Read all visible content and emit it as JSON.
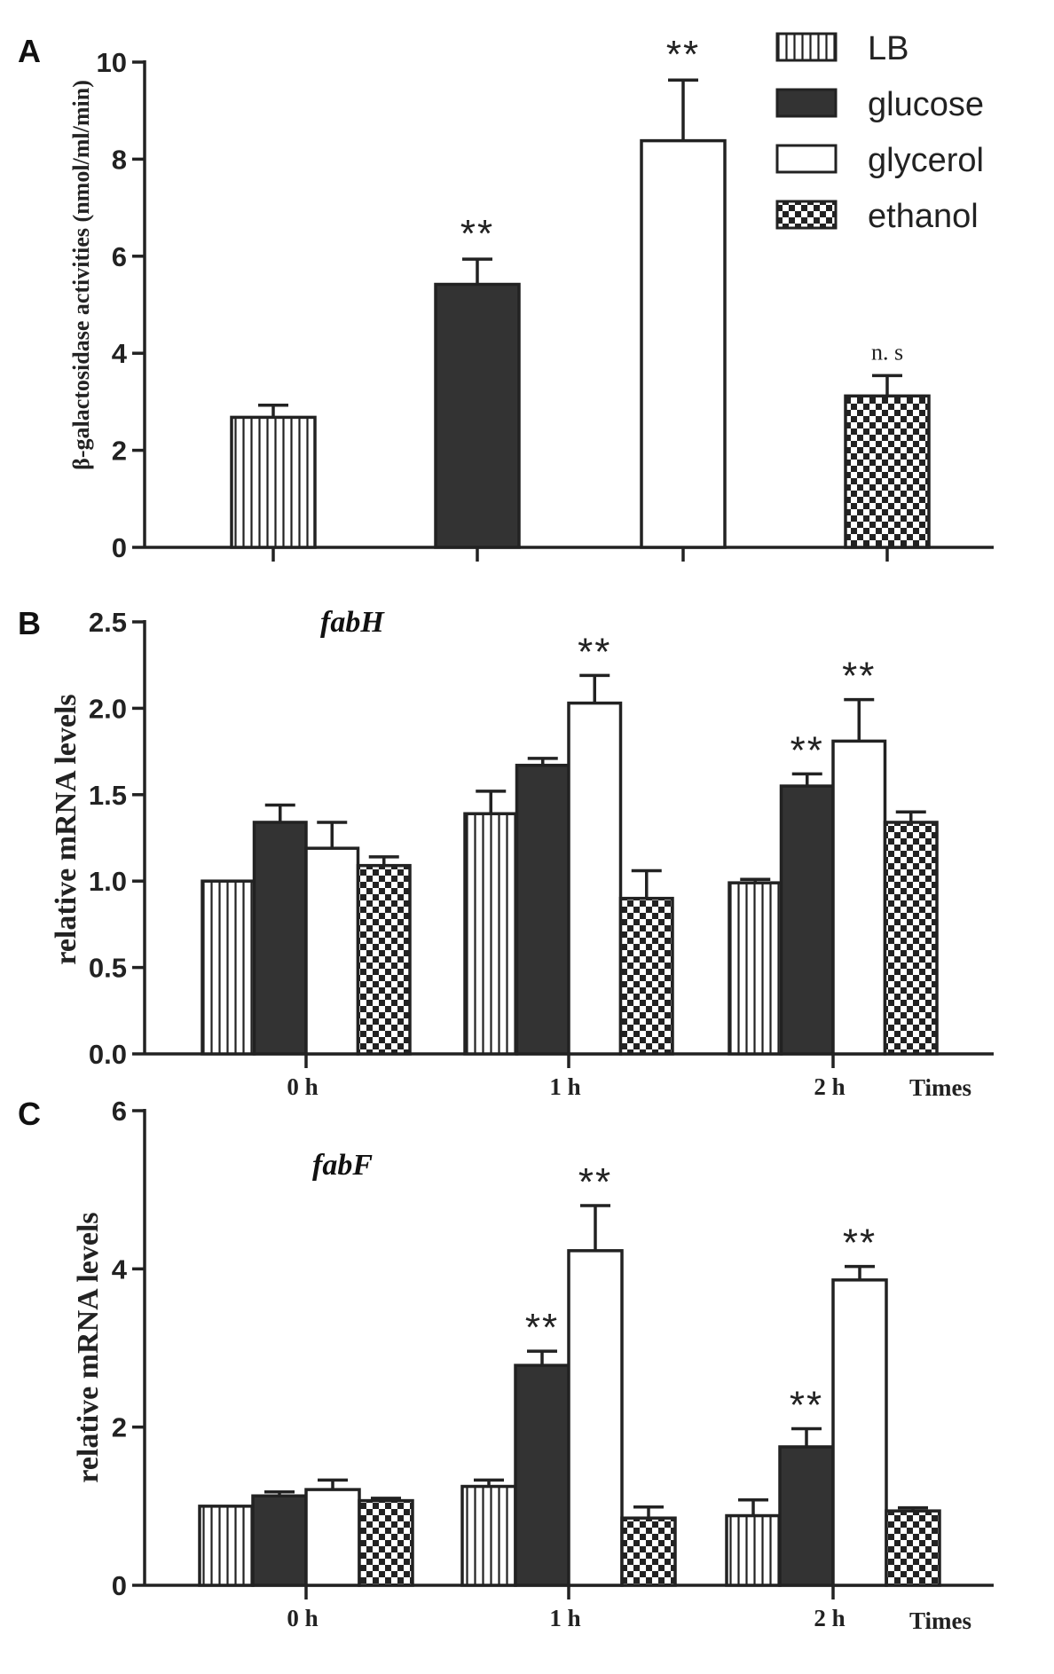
{
  "colors": {
    "stroke": "#222222",
    "solid": "#333333",
    "background": "#ffffff"
  },
  "legend": [
    {
      "label": "LB",
      "fill": "vert"
    },
    {
      "label": "glucose",
      "fill": "solid"
    },
    {
      "label": "glycerol",
      "fill": "white"
    },
    {
      "label": "ethanol",
      "fill": "checker"
    }
  ],
  "chart_data": [
    {
      "panel": "A",
      "type": "bar",
      "title": "",
      "ylabel": "β-galactosidase activities (nmol/ml/min)",
      "xlabel": "",
      "ylim": [
        0,
        10
      ],
      "yticks": [
        0,
        2,
        4,
        6,
        8,
        10
      ],
      "categories": [
        "LB",
        "glucose",
        "glycerol",
        "ethanol"
      ],
      "values": [
        2.68,
        5.42,
        8.38,
        3.12
      ],
      "errors": [
        0.25,
        0.52,
        1.25,
        0.42
      ],
      "annotations": [
        "",
        "**",
        "**",
        "n. s"
      ]
    },
    {
      "panel": "B",
      "type": "bar",
      "gene": "fabH",
      "ylabel": "relative mRNA levels",
      "xlabel": "Times",
      "ylim": [
        0,
        2.5
      ],
      "yticks": [
        "0.0",
        "0.5",
        "1.0",
        "1.5",
        "2.0",
        "2.5"
      ],
      "categories": [
        "0 h",
        "1 h",
        "2 h"
      ],
      "series": [
        {
          "name": "LB",
          "values": [
            1.0,
            1.39,
            0.99
          ],
          "errors": [
            0.0,
            0.13,
            0.02
          ]
        },
        {
          "name": "glucose",
          "values": [
            1.34,
            1.67,
            1.55
          ],
          "errors": [
            0.1,
            0.04,
            0.07
          ]
        },
        {
          "name": "glycerol",
          "values": [
            1.19,
            2.03,
            1.81
          ],
          "errors": [
            0.15,
            0.16,
            0.24
          ]
        },
        {
          "name": "ethanol",
          "values": [
            1.09,
            0.9,
            1.34
          ],
          "errors": [
            0.05,
            0.16,
            0.06
          ]
        }
      ],
      "annotations": [
        {
          "category": "1 h",
          "series": "glycerol",
          "text": "**"
        },
        {
          "category": "2 h",
          "series": "glucose",
          "text": "**"
        },
        {
          "category": "2 h",
          "series": "glycerol",
          "text": "**"
        }
      ]
    },
    {
      "panel": "C",
      "type": "bar",
      "gene": "fabF",
      "ylabel": "relative mRNA levels",
      "xlabel": "Times",
      "ylim": [
        0,
        6
      ],
      "yticks": [
        "0",
        "2",
        "4",
        "6"
      ],
      "categories": [
        "0 h",
        "1 h",
        "2 h"
      ],
      "series": [
        {
          "name": "LB",
          "values": [
            1.0,
            1.25,
            0.88
          ],
          "errors": [
            0.0,
            0.08,
            0.2
          ]
        },
        {
          "name": "glucose",
          "values": [
            1.13,
            2.78,
            1.75
          ],
          "errors": [
            0.05,
            0.18,
            0.23
          ]
        },
        {
          "name": "glycerol",
          "values": [
            1.21,
            4.23,
            3.86
          ],
          "errors": [
            0.12,
            0.57,
            0.17
          ]
        },
        {
          "name": "ethanol",
          "values": [
            1.07,
            0.85,
            0.94
          ],
          "errors": [
            0.03,
            0.14,
            0.04
          ]
        }
      ],
      "annotations": [
        {
          "category": "1 h",
          "series": "glucose",
          "text": "**"
        },
        {
          "category": "1 h",
          "series": "glycerol",
          "text": "**"
        },
        {
          "category": "2 h",
          "series": "glucose",
          "text": "**"
        },
        {
          "category": "2 h",
          "series": "glycerol",
          "text": "**"
        }
      ]
    }
  ]
}
